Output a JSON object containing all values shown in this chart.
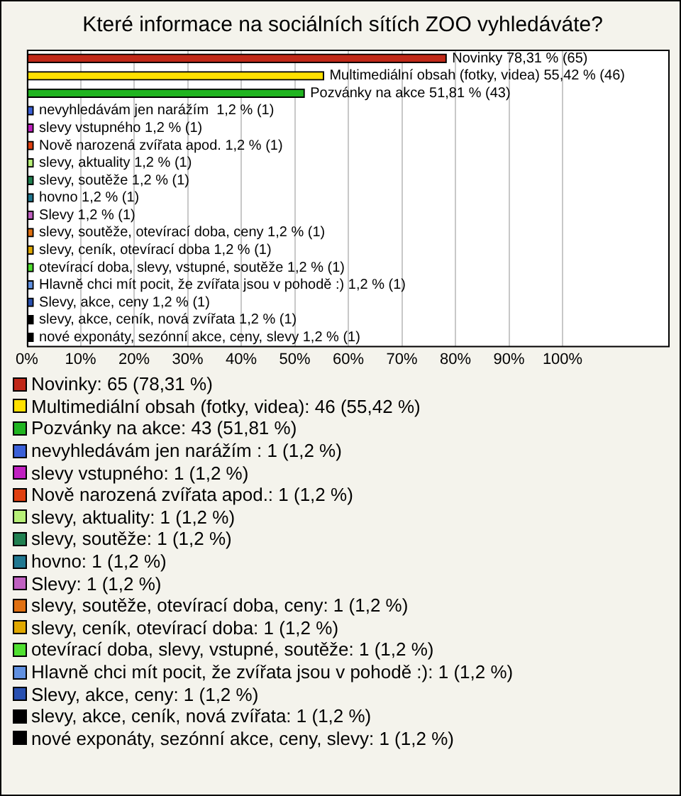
{
  "chart_data": {
    "type": "bar",
    "orientation": "horizontal",
    "title": "Které informace na sociálních sítích ZOO vyhledáváte?",
    "categories": [
      "Novinky",
      "Multimediální obsah (fotky, videa)",
      "Pozvánky na akce",
      "nevyhledávám jen narážím ",
      "slevy vstupného",
      "Nově narozená zvířata apod.",
      "slevy, aktuality",
      "slevy, soutěže",
      "hovno",
      "Slevy",
      "slevy, soutěže, otevírací doba, ceny",
      "slevy, ceník, otevírací doba",
      "otevírací doba, slevy, vstupné, soutěže",
      "Hlavně chci mít pocit, že zvířata jsou v pohodě :)",
      "Slevy, akce, ceny",
      "slevy, akce, ceník, nová zvířata",
      "nové exponáty, sezónní akce, ceny, slevy"
    ],
    "values": [
      78.31,
      55.42,
      51.81,
      1.2,
      1.2,
      1.2,
      1.2,
      1.2,
      1.2,
      1.2,
      1.2,
      1.2,
      1.2,
      1.2,
      1.2,
      1.2,
      1.2
    ],
    "value_labels": [
      "78,31 % (65)",
      "55,42 % (46)",
      "51,81 % (43)",
      "1,2 % (1)",
      "1,2 % (1)",
      "1,2 % (1)",
      "1,2 % (1)",
      "1,2 % (1)",
      "1,2 % (1)",
      "1,2 % (1)",
      "1,2 % (1)",
      "1,2 % (1)",
      "1,2 % (1)",
      "1,2 % (1)",
      "1,2 % (1)",
      "1,2 % (1)",
      "1,2 % (1)"
    ],
    "colors": [
      "#c02818",
      "#ffe000",
      "#20b420",
      "#3a60d8",
      "#c020c0",
      "#e04010",
      "#b8f078",
      "#208050",
      "#207890",
      "#c060c0",
      "#e07010",
      "#e0a800",
      "#50e030",
      "#6090e0",
      "#2850b0",
      "#000000",
      "#000000"
    ],
    "xlim": [
      0,
      120
    ],
    "xticks": [
      {
        "value": 0,
        "label": "0%"
      },
      {
        "value": 10,
        "label": "10%"
      },
      {
        "value": 20,
        "label": "20%"
      },
      {
        "value": 30,
        "label": "30%"
      },
      {
        "value": 40,
        "label": "40%"
      },
      {
        "value": 50,
        "label": "50%"
      },
      {
        "value": 60,
        "label": "60%"
      },
      {
        "value": 70,
        "label": "70%"
      },
      {
        "value": 80,
        "label": "80%"
      },
      {
        "value": 90,
        "label": "90%"
      },
      {
        "value": 100,
        "label": "100%"
      }
    ],
    "grid": "x",
    "tick_labels": "x",
    "annotations": [
      "Novinky: 65 (78,31 %)",
      "Multimediální obsah (fotky, videa): 46 (55,42 %)",
      "Pozvánky na akce: 43 (51,81 %)",
      "nevyhledávám jen narážím : 1 (1,2 %)",
      "slevy vstupného: 1 (1,2 %)",
      "Nově narozená zvířata apod.: 1 (1,2 %)",
      "slevy, aktuality: 1 (1,2 %)",
      "slevy, soutěže: 1 (1,2 %)",
      "hovno: 1 (1,2 %)",
      "Slevy: 1 (1,2 %)",
      "slevy, soutěže, otevírací doba, ceny: 1 (1,2 %)",
      "slevy, ceník, otevírací doba: 1 (1,2 %)",
      "otevírací doba, slevy, vstupné, soutěže: 1 (1,2 %)",
      "Hlavně chci mít pocit, že zvířata jsou v pohodě :): 1 (1,2 %)",
      "Slevy, akce, ceny: 1 (1,2 %)",
      "slevy, akce, ceník, nová zvířata: 1 (1,2 %)",
      "nové exponáty, sezónní akce, ceny, slevy: 1 (1,2 %)"
    ]
  }
}
